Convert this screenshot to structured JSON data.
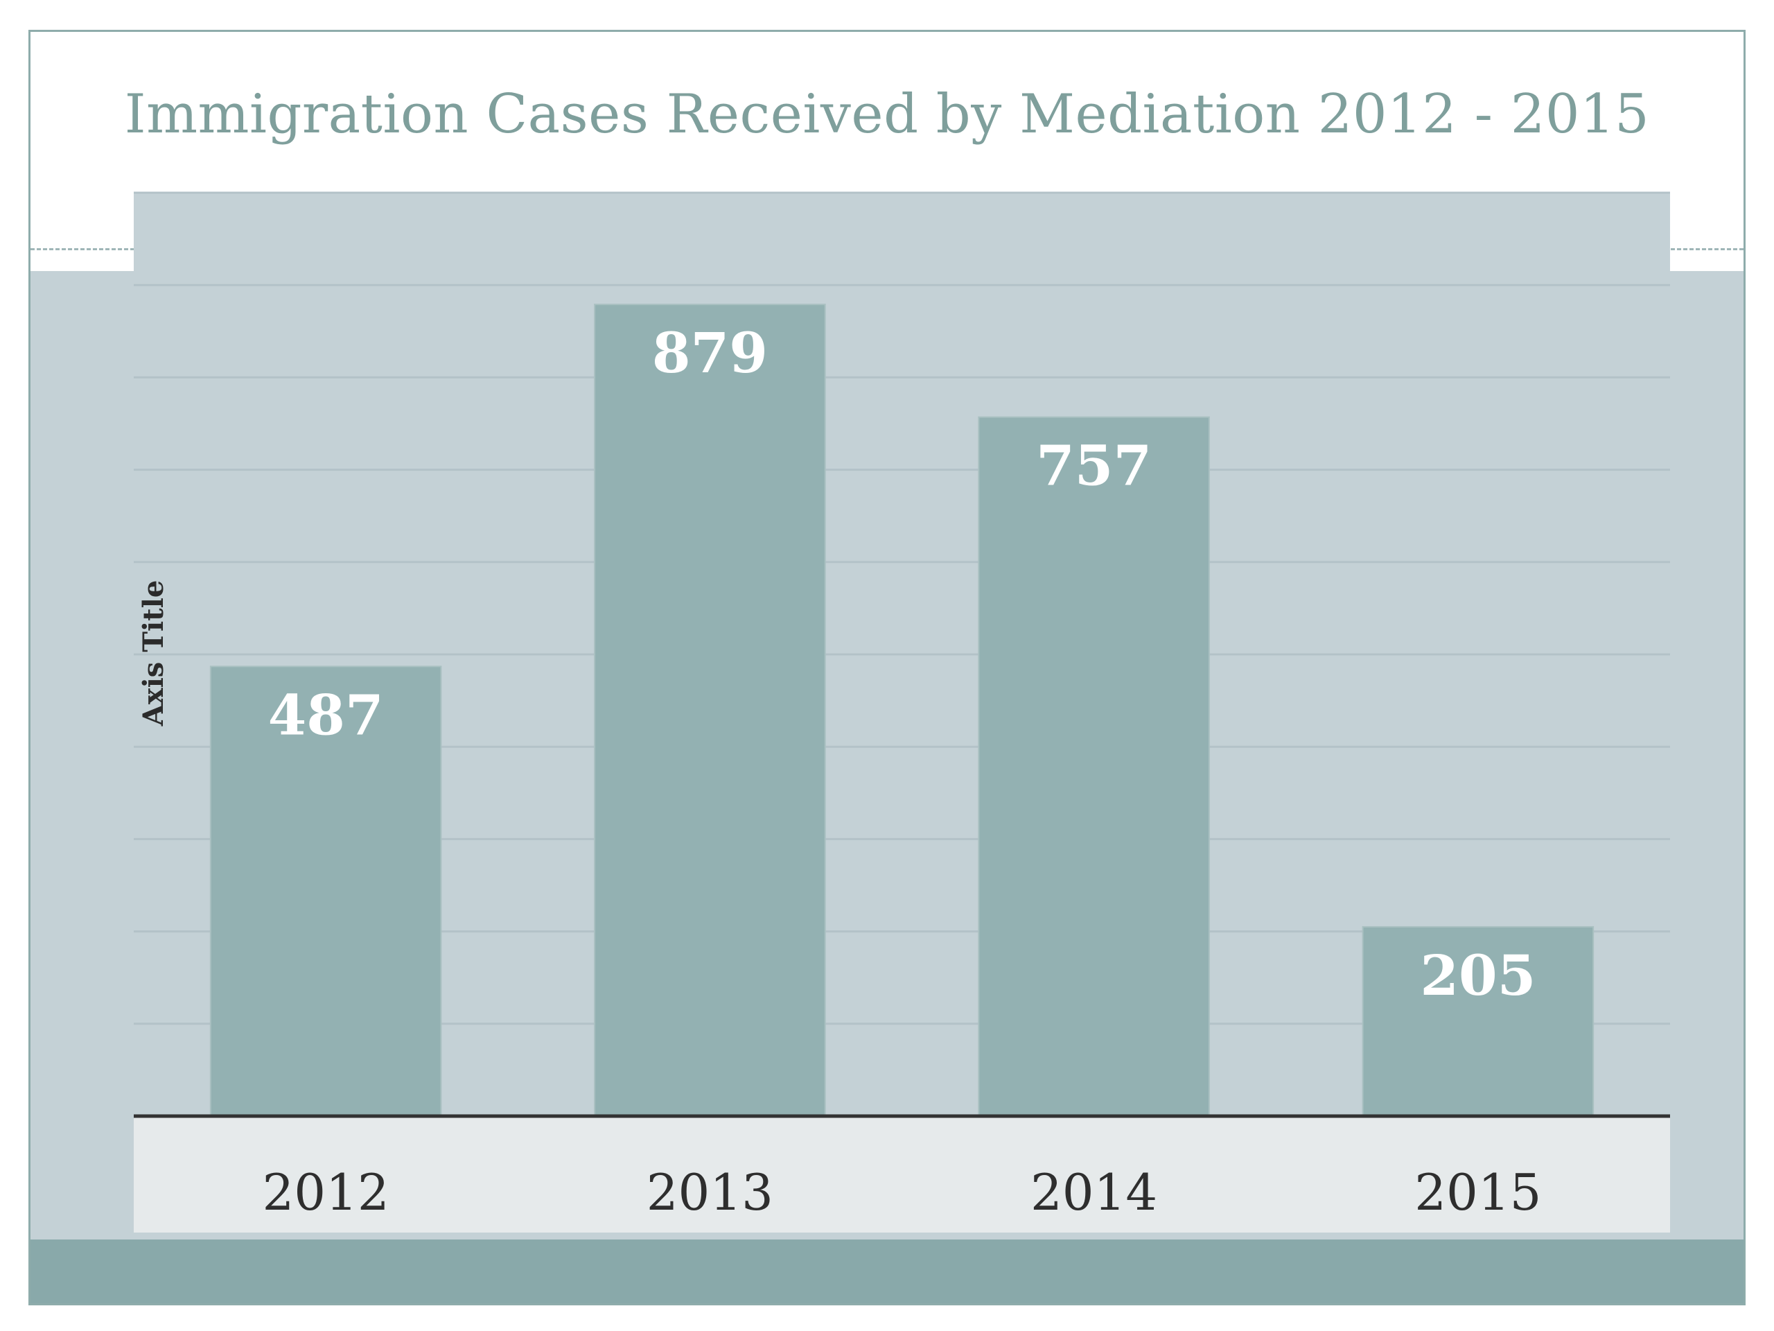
{
  "slide": {
    "accent_color": "#89a9aa",
    "panel_color": "#c4d1d6",
    "title_color": "#7f9f9c"
  },
  "chart_data": {
    "type": "bar",
    "title": "Immigration Cases Received by Mediation 2012 - 2015",
    "categories": [
      "2012",
      "2013",
      "2014",
      "2015"
    ],
    "values": [
      487,
      879,
      757,
      205
    ],
    "data_labels": [
      "487",
      "879",
      "757",
      "205"
    ],
    "ylabel": "Axis Title",
    "xlabel": "",
    "ylim": [
      0,
      1000
    ],
    "grid": true,
    "legend": "none",
    "bar_color": "#93b1b2",
    "plot_background": "#c4d1d6",
    "category_band_color": "#e6eaeb"
  }
}
